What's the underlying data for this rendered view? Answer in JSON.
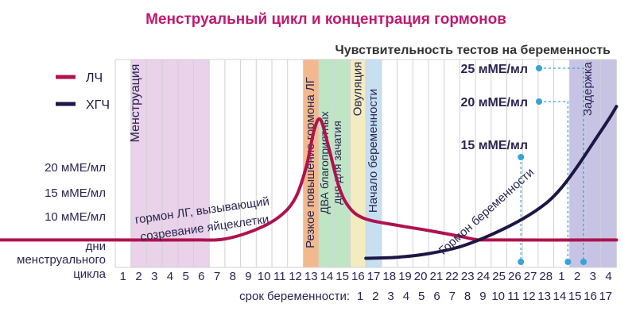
{
  "chart_data": {
    "type": "line",
    "title": "Менструальный цикл и концентрация гормонов",
    "subtitle": "Чувствительность тестов на беременность",
    "legend": [
      {
        "name": "ЛЧ",
        "color": "#b0124e"
      },
      {
        "name": "ХГЧ",
        "color": "#1c1745"
      }
    ],
    "y_ticks": [
      "10 мМЕ/мл",
      "15 мМЕ/мл",
      "20 мМЕ/мл"
    ],
    "x_row1_label": [
      "дни",
      "менструального",
      "цикла"
    ],
    "x_row1_ticks": [
      "1",
      "2",
      "3",
      "4",
      "5",
      "6",
      "7",
      "8",
      "9",
      "10",
      "11",
      "12",
      "13",
      "14",
      "15",
      "16",
      "17",
      "18",
      "19",
      "20",
      "21",
      "22",
      "23",
      "24",
      "25",
      "26",
      "27",
      "28",
      "1",
      "2",
      "3",
      "4"
    ],
    "x_row2_label": "срок беременности:",
    "x_row2_ticks": [
      "1",
      "2",
      "3",
      "4",
      "5",
      "6",
      "7",
      "8",
      "9",
      "10",
      "11",
      "12",
      "13",
      "14",
      "15",
      "16",
      "17"
    ],
    "bands": [
      {
        "label": "Менструация",
        "from": 1,
        "to": 6,
        "color": "#e9d2ea"
      },
      {
        "label": "Резкое повышение гормона ЛГ",
        "from": 12,
        "to": 13,
        "color": "#f3b98e"
      },
      {
        "label": "ДВА благоприятных дня для зачатия",
        "from": 13,
        "to": 15,
        "color": "#bfe6c4"
      },
      {
        "label": "Овуляция",
        "from": 15,
        "to": 16,
        "color": "#f3ecc0"
      },
      {
        "label": "Начало беременности",
        "from": 16,
        "to": 17,
        "color": "#c6e0f2"
      },
      {
        "label": "Задержка",
        "from": 29,
        "to": 32,
        "color": "#c7c3e4"
      }
    ],
    "annotations": {
      "lh_rise": [
        "гормон ЛГ, вызывающий",
        "созревание яйцеклетки"
      ],
      "hcg": "Гормон беременности"
    },
    "test_sensitivity": [
      {
        "label": "25 мМЕ/мл",
        "day": 30
      },
      {
        "label": "20 мМЕ/мл",
        "day": 29
      },
      {
        "label": "15 мМЕ/мл",
        "day": 26
      }
    ],
    "series": [
      {
        "name": "ЛЧ",
        "color": "#b0124e",
        "points": [
          [
            0,
            1
          ],
          [
            5,
            1
          ],
          [
            7,
            1.2
          ],
          [
            9,
            3
          ],
          [
            10.5,
            5.5
          ],
          [
            11.5,
            9
          ],
          [
            12.2,
            15
          ],
          [
            12.7,
            22
          ],
          [
            13.1,
            24
          ],
          [
            13.6,
            19
          ],
          [
            14.3,
            11
          ],
          [
            15,
            7
          ],
          [
            16,
            5
          ],
          [
            18,
            3.8
          ],
          [
            20,
            2.8
          ],
          [
            22,
            1.7
          ],
          [
            23,
            1.1
          ],
          [
            24,
            1
          ],
          [
            32,
            1
          ]
        ]
      },
      {
        "name": "ХГЧ",
        "color": "#1c1745",
        "points": [
          [
            16,
            -2.5
          ],
          [
            18,
            -2.3
          ],
          [
            20,
            -1.6
          ],
          [
            22,
            -0.3
          ],
          [
            24,
            2
          ],
          [
            26,
            5
          ],
          [
            27.5,
            8
          ],
          [
            28.5,
            11
          ],
          [
            29.5,
            15
          ],
          [
            30.5,
            19.5
          ],
          [
            31.5,
            24
          ],
          [
            32,
            26.5
          ]
        ]
      }
    ],
    "ylim": [
      -3,
      28
    ]
  }
}
